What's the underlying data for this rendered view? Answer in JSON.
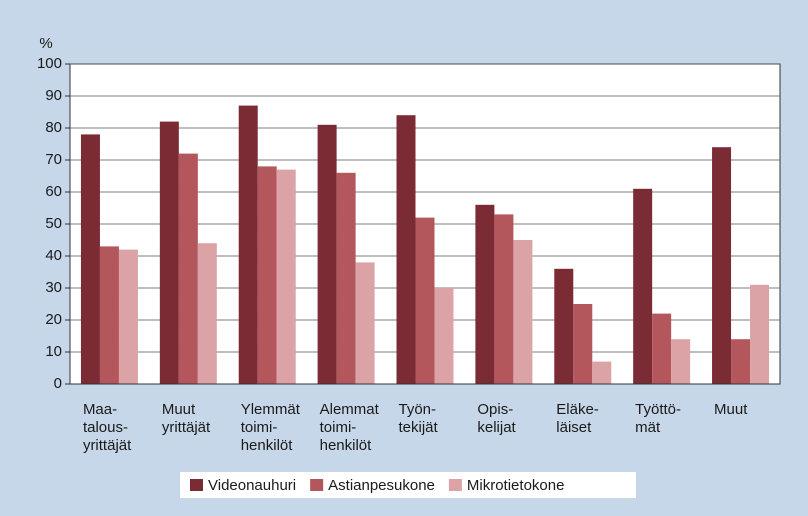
{
  "chart_data": {
    "type": "bar",
    "y_label": "%",
    "categories": [
      "Maa-\ntalous-\nyrittäjät",
      "Muut\nyrittäjät",
      "Ylemmät\ntoimi-\nhenkilöt",
      "Alemmat\ntoimi-\nhenkilöt",
      "Työn-\ntekijät",
      "Opis-\nkelijat",
      "Eläke-\nläiset",
      "Työttö-\nmät",
      "Muut"
    ],
    "series": [
      {
        "name": "Videonauhuri",
        "color": "#7b2b33",
        "values": [
          78,
          82,
          87,
          81,
          84,
          56,
          36,
          61,
          74
        ]
      },
      {
        "name": "Astianpesukone",
        "color": "#b4575d",
        "values": [
          43,
          72,
          68,
          66,
          52,
          53,
          25,
          22,
          14
        ]
      },
      {
        "name": "Mikrotietokone",
        "color": "#dca3a7",
        "values": [
          42,
          44,
          67,
          38,
          30,
          45,
          7,
          14,
          31
        ]
      }
    ],
    "ylim": [
      0,
      100
    ],
    "yticks": [
      0,
      10,
      20,
      30,
      40,
      50,
      60,
      70,
      80,
      90,
      100
    ],
    "grid": true
  }
}
